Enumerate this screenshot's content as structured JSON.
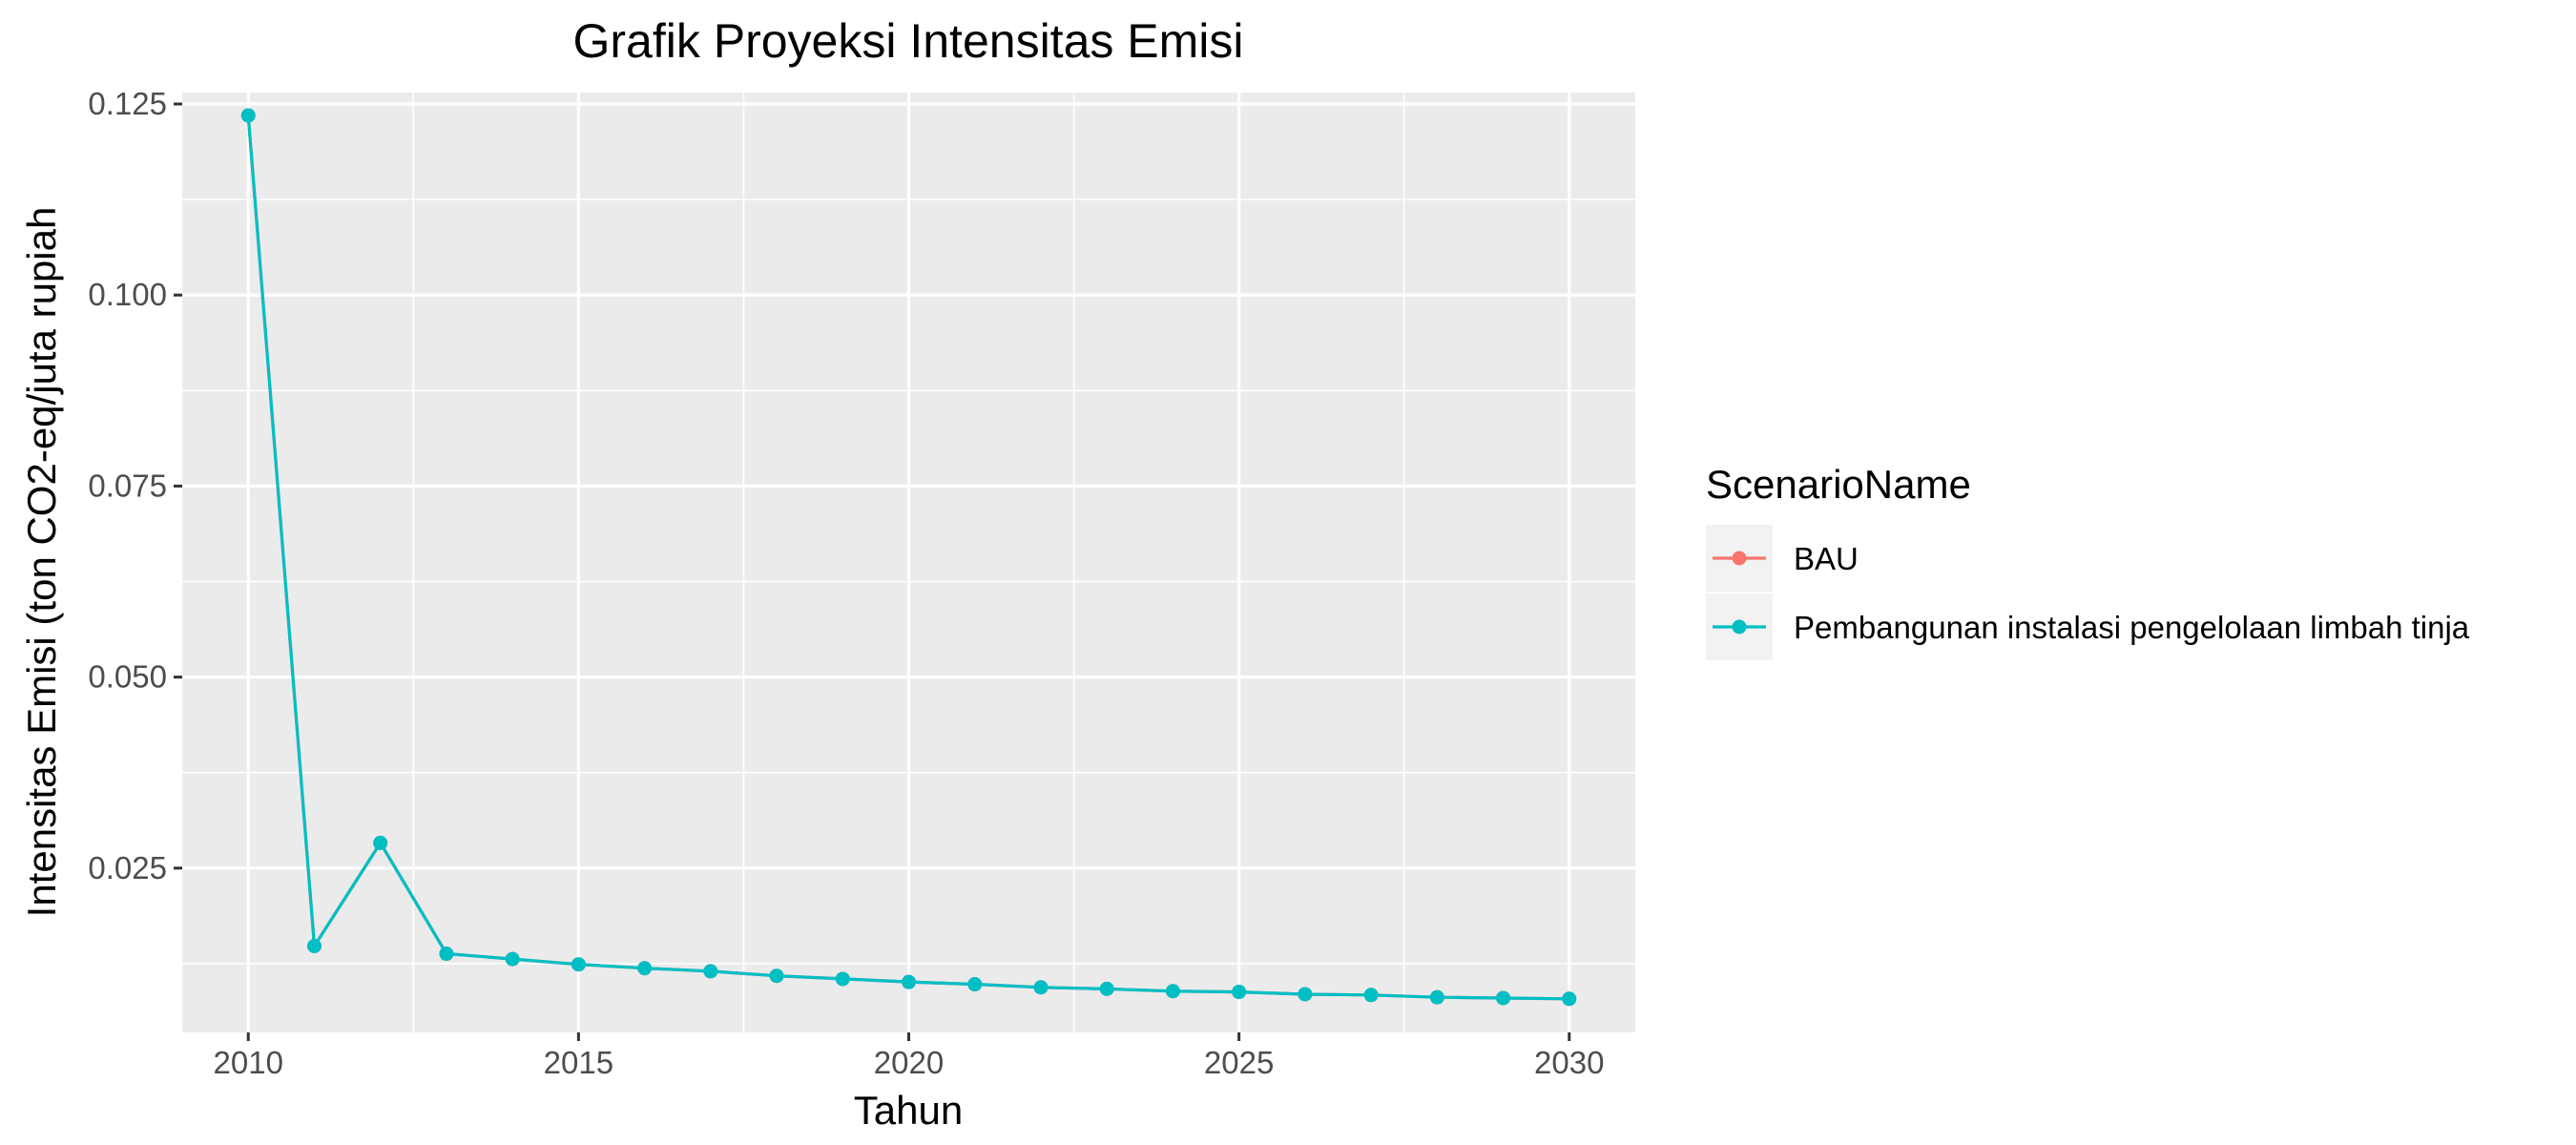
{
  "chart_data": {
    "type": "line",
    "title": "Grafik Proyeksi Intensitas Emisi",
    "xlabel": "Tahun",
    "ylabel": "Intensitas Emisi (ton CO2-eq/juta rupiah",
    "x": [
      2010,
      2011,
      2012,
      2013,
      2014,
      2015,
      2016,
      2017,
      2018,
      2019,
      2020,
      2021,
      2022,
      2023,
      2024,
      2025,
      2026,
      2027,
      2028,
      2029,
      2030
    ],
    "xlim": [
      2009,
      2031
    ],
    "ylim": [
      0.0035,
      0.1265
    ],
    "x_ticks": [
      2010,
      2015,
      2020,
      2025,
      2030
    ],
    "x_tick_labels": [
      "2010",
      "2015",
      "2020",
      "2025",
      "2030"
    ],
    "y_ticks": [
      0.025,
      0.05,
      0.075,
      0.1,
      0.125
    ],
    "y_tick_labels": [
      "0.025",
      "0.050",
      "0.075",
      "0.100",
      "0.125"
    ],
    "grid": true,
    "legend_position": "right",
    "legend_title": "ScenarioName",
    "series": [
      {
        "name": "BAU",
        "color": "#F8766D",
        "values": [
          0.1235,
          0.0148,
          0.0283,
          0.0138,
          0.0131,
          0.0124,
          0.0119,
          0.0115,
          0.0109,
          0.0105,
          0.0101,
          0.0098,
          0.0094,
          0.0092,
          0.0089,
          0.0088,
          0.0085,
          0.0084,
          0.0081,
          0.008,
          0.0079
        ]
      },
      {
        "name": "Pembangunan instalasi pengelolaan limbah tinja",
        "color": "#00BFC4",
        "values": [
          0.1235,
          0.0148,
          0.0283,
          0.0138,
          0.0131,
          0.0124,
          0.0119,
          0.0115,
          0.0109,
          0.0105,
          0.0101,
          0.0098,
          0.0094,
          0.0092,
          0.0089,
          0.0088,
          0.0085,
          0.0084,
          0.0081,
          0.008,
          0.0079
        ]
      }
    ]
  }
}
